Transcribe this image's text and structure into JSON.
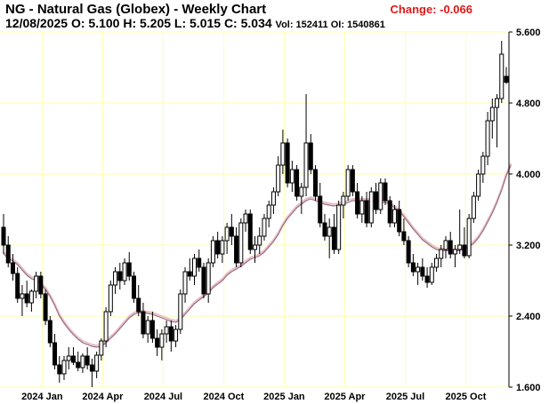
{
  "header": {
    "title": "NG - Natural Gas (Globex) - Weekly Chart",
    "date": "12/08/2025",
    "ohlc": "O: 5.100 H: 5.205 L: 5.015 C: 5.034",
    "vol_oi": "Vol: 152411 OI: 1540861",
    "change": "Change: -0.066"
  },
  "colors": {
    "candle": "#000000",
    "ma_fill": "#e8c0c0",
    "ma_line": "#9a6a8a",
    "grid": "#ffffaa",
    "change": "#e01818"
  },
  "chart_data": {
    "type": "candlestick",
    "y_ticks": [
      "5.600",
      "4.800",
      "4.000",
      "3.200",
      "2.400",
      "1.600"
    ],
    "y_tick_values": [
      5.6,
      4.8,
      4.0,
      3.2,
      2.4,
      1.6
    ],
    "ylim": [
      1.6,
      5.6
    ],
    "x_labels": [
      "2024 Jan",
      "2024 Apr",
      "2024 Jul",
      "2024 Oct",
      "2025 Jan",
      "2025 Apr",
      "2025 Jul",
      "2025 Oct"
    ],
    "grid": true,
    "ohlc": [
      [
        3.4,
        3.55,
        3.1,
        3.2
      ],
      [
        3.2,
        3.3,
        2.95,
        3.0
      ],
      [
        3.0,
        3.1,
        2.8,
        2.88
      ],
      [
        2.88,
        2.95,
        2.55,
        2.6
      ],
      [
        2.6,
        2.75,
        2.4,
        2.65
      ],
      [
        2.65,
        2.8,
        2.5,
        2.55
      ],
      [
        2.55,
        2.7,
        2.45,
        2.68
      ],
      [
        2.68,
        2.9,
        2.6,
        2.85
      ],
      [
        2.85,
        2.9,
        2.6,
        2.65
      ],
      [
        2.65,
        2.7,
        2.3,
        2.35
      ],
      [
        2.35,
        2.4,
        2.05,
        2.1
      ],
      [
        2.1,
        2.2,
        1.8,
        1.85
      ],
      [
        1.85,
        1.95,
        1.65,
        1.75
      ],
      [
        1.75,
        1.95,
        1.68,
        1.9
      ],
      [
        1.9,
        2.05,
        1.8,
        1.95
      ],
      [
        1.95,
        2.05,
        1.85,
        1.88
      ],
      [
        1.88,
        2.0,
        1.78,
        1.82
      ],
      [
        1.82,
        1.98,
        1.76,
        1.95
      ],
      [
        1.95,
        2.05,
        1.8,
        1.85
      ],
      [
        1.85,
        1.92,
        1.6,
        1.78
      ],
      [
        1.78,
        2.0,
        1.7,
        1.96
      ],
      [
        1.96,
        2.15,
        1.9,
        2.12
      ],
      [
        2.12,
        2.5,
        2.05,
        2.45
      ],
      [
        2.45,
        2.8,
        2.4,
        2.75
      ],
      [
        2.75,
        2.95,
        2.65,
        2.9
      ],
      [
        2.9,
        3.0,
        2.7,
        2.8
      ],
      [
        2.8,
        3.05,
        2.75,
        3.0
      ],
      [
        3.0,
        3.12,
        2.8,
        2.85
      ],
      [
        2.85,
        2.9,
        2.55,
        2.6
      ],
      [
        2.6,
        2.75,
        2.4,
        2.45
      ],
      [
        2.45,
        2.55,
        2.15,
        2.2
      ],
      [
        2.2,
        2.4,
        2.1,
        2.35
      ],
      [
        2.35,
        2.45,
        2.1,
        2.15
      ],
      [
        2.15,
        2.25,
        1.95,
        2.05
      ],
      [
        2.05,
        2.25,
        1.9,
        2.2
      ],
      [
        2.2,
        2.35,
        2.1,
        2.28
      ],
      [
        2.28,
        2.35,
        2.0,
        2.12
      ],
      [
        2.12,
        2.3,
        2.05,
        2.25
      ],
      [
        2.25,
        2.7,
        2.2,
        2.65
      ],
      [
        2.65,
        2.95,
        2.55,
        2.9
      ],
      [
        2.9,
        3.05,
        2.8,
        2.85
      ],
      [
        2.85,
        3.1,
        2.75,
        3.05
      ],
      [
        3.05,
        3.15,
        2.9,
        2.95
      ],
      [
        2.95,
        3.0,
        2.6,
        2.65
      ],
      [
        2.65,
        3.05,
        2.55,
        3.0
      ],
      [
        3.0,
        3.3,
        2.95,
        3.25
      ],
      [
        3.25,
        3.35,
        3.05,
        3.1
      ],
      [
        3.1,
        3.3,
        3.0,
        3.25
      ],
      [
        3.25,
        3.45,
        3.1,
        3.4
      ],
      [
        3.4,
        3.55,
        3.2,
        3.3
      ],
      [
        3.3,
        3.4,
        2.95,
        3.0
      ],
      [
        3.0,
        3.5,
        2.95,
        3.45
      ],
      [
        3.45,
        3.6,
        3.35,
        3.55
      ],
      [
        3.55,
        3.6,
        3.1,
        3.15
      ],
      [
        3.15,
        3.3,
        3.0,
        3.2
      ],
      [
        3.2,
        3.4,
        3.1,
        3.3
      ],
      [
        3.3,
        3.55,
        3.25,
        3.5
      ],
      [
        3.5,
        3.7,
        3.4,
        3.65
      ],
      [
        3.65,
        3.85,
        3.55,
        3.8
      ],
      [
        3.8,
        4.2,
        3.75,
        4.1
      ],
      [
        4.1,
        4.5,
        4.0,
        4.35
      ],
      [
        4.35,
        4.4,
        3.85,
        3.9
      ],
      [
        3.9,
        4.15,
        3.8,
        4.05
      ],
      [
        4.05,
        4.1,
        3.7,
        3.75
      ],
      [
        3.75,
        3.9,
        3.55,
        3.85
      ],
      [
        3.85,
        4.9,
        3.75,
        4.35
      ],
      [
        4.35,
        4.45,
        4.0,
        4.05
      ],
      [
        4.05,
        4.1,
        3.7,
        3.75
      ],
      [
        3.75,
        3.9,
        3.4,
        3.45
      ],
      [
        3.45,
        3.55,
        3.25,
        3.3
      ],
      [
        3.3,
        3.5,
        3.05,
        3.4
      ],
      [
        3.4,
        3.55,
        3.1,
        3.15
      ],
      [
        3.15,
        3.7,
        3.1,
        3.65
      ],
      [
        3.65,
        3.8,
        3.5,
        3.75
      ],
      [
        3.75,
        4.1,
        3.7,
        4.05
      ],
      [
        4.05,
        4.1,
        3.75,
        3.8
      ],
      [
        3.8,
        3.9,
        3.5,
        3.55
      ],
      [
        3.55,
        3.75,
        3.45,
        3.7
      ],
      [
        3.7,
        3.8,
        3.4,
        3.45
      ],
      [
        3.45,
        3.85,
        3.4,
        3.8
      ],
      [
        3.8,
        3.9,
        3.55,
        3.6
      ],
      [
        3.6,
        3.95,
        3.55,
        3.9
      ],
      [
        3.9,
        3.95,
        3.65,
        3.7
      ],
      [
        3.7,
        3.75,
        3.4,
        3.45
      ],
      [
        3.45,
        3.65,
        3.4,
        3.6
      ],
      [
        3.6,
        3.7,
        3.3,
        3.35
      ],
      [
        3.35,
        3.5,
        3.2,
        3.25
      ],
      [
        3.25,
        3.3,
        2.95,
        3.0
      ],
      [
        3.0,
        3.1,
        2.85,
        2.9
      ],
      [
        2.9,
        3.0,
        2.75,
        2.95
      ],
      [
        2.95,
        3.05,
        2.8,
        2.85
      ],
      [
        2.85,
        2.95,
        2.72,
        2.78
      ],
      [
        2.78,
        3.0,
        2.75,
        2.95
      ],
      [
        2.95,
        3.1,
        2.9,
        3.05
      ],
      [
        3.05,
        3.2,
        2.95,
        3.15
      ],
      [
        3.15,
        3.3,
        3.05,
        3.25
      ],
      [
        3.25,
        3.35,
        3.05,
        3.1
      ],
      [
        3.1,
        3.2,
        2.95,
        3.15
      ],
      [
        3.15,
        3.6,
        3.1,
        3.2
      ],
      [
        3.2,
        3.4,
        3.05,
        3.08
      ],
      [
        3.08,
        3.55,
        3.05,
        3.5
      ],
      [
        3.5,
        3.8,
        3.45,
        3.75
      ],
      [
        3.75,
        4.05,
        3.7,
        4.0
      ],
      [
        4.0,
        4.25,
        3.9,
        4.2
      ],
      [
        4.2,
        4.7,
        4.1,
        4.6
      ],
      [
        4.6,
        4.85,
        4.4,
        4.75
      ],
      [
        4.75,
        4.9,
        4.3,
        4.85
      ],
      [
        4.85,
        5.5,
        4.8,
        5.35
      ],
      [
        5.1,
        5.205,
        5.015,
        5.034
      ]
    ],
    "ma": [
      3.1,
      3.05,
      3.02,
      2.98,
      2.92,
      2.86,
      2.82,
      2.8,
      2.76,
      2.7,
      2.62,
      2.52,
      2.4,
      2.32,
      2.25,
      2.19,
      2.14,
      2.1,
      2.08,
      2.06,
      2.05,
      2.06,
      2.1,
      2.15,
      2.2,
      2.26,
      2.32,
      2.38,
      2.42,
      2.44,
      2.44,
      2.43,
      2.42,
      2.4,
      2.38,
      2.36,
      2.34,
      2.33,
      2.36,
      2.42,
      2.48,
      2.54,
      2.58,
      2.62,
      2.66,
      2.72,
      2.76,
      2.8,
      2.86,
      2.9,
      2.93,
      2.96,
      3.0,
      3.04,
      3.06,
      3.08,
      3.12,
      3.18,
      3.24,
      3.32,
      3.42,
      3.5,
      3.56,
      3.62,
      3.66,
      3.7,
      3.72,
      3.7,
      3.68,
      3.66,
      3.65,
      3.64,
      3.65,
      3.66,
      3.68,
      3.7,
      3.7,
      3.7,
      3.7,
      3.7,
      3.69,
      3.68,
      3.68,
      3.66,
      3.62,
      3.58,
      3.52,
      3.45,
      3.38,
      3.32,
      3.26,
      3.22,
      3.18,
      3.15,
      3.14,
      3.14,
      3.13,
      3.13,
      3.14,
      3.16,
      3.18,
      3.22,
      3.28,
      3.36,
      3.46,
      3.56,
      3.68,
      3.82,
      3.98,
      4.1
    ]
  }
}
